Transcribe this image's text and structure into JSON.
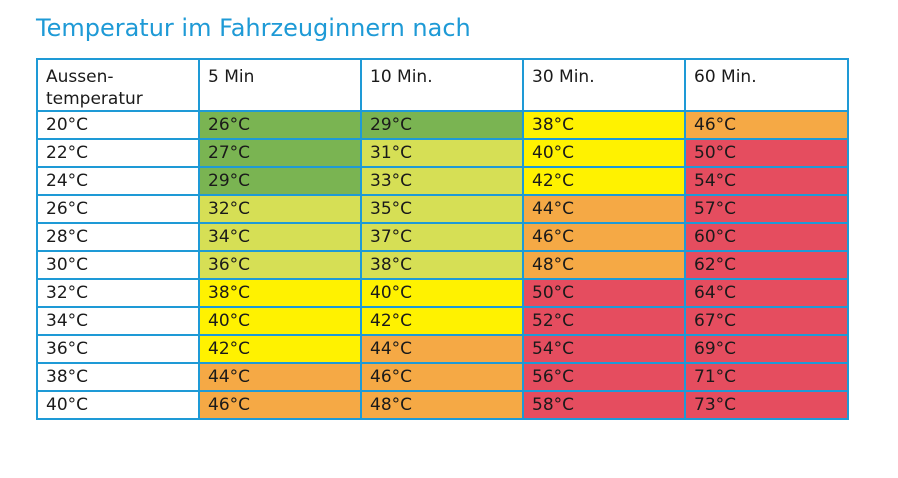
{
  "title": "Temperatur im Fahrzeuginnern nach",
  "colors": {
    "border": "#1e9ad6",
    "title": "#1e9ad6",
    "green": "#7ab452",
    "lime": "#d6df55",
    "yellow": "#fff200",
    "orange": "#f5a945",
    "red": "#e54d5f"
  },
  "columns": [
    "Aussen-\ntemperatur",
    "5 Min",
    "10 Min.",
    "30 Min.",
    "60 Min."
  ],
  "rows": [
    {
      "outside": "20°C",
      "cells": [
        {
          "v": "26°C",
          "c": "green"
        },
        {
          "v": "29°C",
          "c": "green"
        },
        {
          "v": "38°C",
          "c": "yellow"
        },
        {
          "v": "46°C",
          "c": "orange"
        }
      ]
    },
    {
      "outside": "22°C",
      "cells": [
        {
          "v": "27°C",
          "c": "green"
        },
        {
          "v": "31°C",
          "c": "lime"
        },
        {
          "v": "40°C",
          "c": "yellow"
        },
        {
          "v": "50°C",
          "c": "red"
        }
      ]
    },
    {
      "outside": "24°C",
      "cells": [
        {
          "v": "29°C",
          "c": "green"
        },
        {
          "v": "33°C",
          "c": "lime"
        },
        {
          "v": "42°C",
          "c": "yellow"
        },
        {
          "v": "54°C",
          "c": "red"
        }
      ]
    },
    {
      "outside": "26°C",
      "cells": [
        {
          "v": "32°C",
          "c": "lime"
        },
        {
          "v": "35°C",
          "c": "lime"
        },
        {
          "v": "44°C",
          "c": "orange"
        },
        {
          "v": "57°C",
          "c": "red"
        }
      ]
    },
    {
      "outside": "28°C",
      "cells": [
        {
          "v": "34°C",
          "c": "lime"
        },
        {
          "v": "37°C",
          "c": "lime"
        },
        {
          "v": "46°C",
          "c": "orange"
        },
        {
          "v": "60°C",
          "c": "red"
        }
      ]
    },
    {
      "outside": "30°C",
      "cells": [
        {
          "v": "36°C",
          "c": "lime"
        },
        {
          "v": "38°C",
          "c": "lime"
        },
        {
          "v": "48°C",
          "c": "orange"
        },
        {
          "v": "62°C",
          "c": "red"
        }
      ]
    },
    {
      "outside": "32°C",
      "cells": [
        {
          "v": "38°C",
          "c": "yellow"
        },
        {
          "v": "40°C",
          "c": "yellow"
        },
        {
          "v": "50°C",
          "c": "red"
        },
        {
          "v": "64°C",
          "c": "red"
        }
      ]
    },
    {
      "outside": "34°C",
      "cells": [
        {
          "v": "40°C",
          "c": "yellow"
        },
        {
          "v": "42°C",
          "c": "yellow"
        },
        {
          "v": "52°C",
          "c": "red"
        },
        {
          "v": "67°C",
          "c": "red"
        }
      ]
    },
    {
      "outside": "36°C",
      "cells": [
        {
          "v": "42°C",
          "c": "yellow"
        },
        {
          "v": "44°C",
          "c": "orange"
        },
        {
          "v": "54°C",
          "c": "red"
        },
        {
          "v": "69°C",
          "c": "red"
        }
      ]
    },
    {
      "outside": "38°C",
      "cells": [
        {
          "v": "44°C",
          "c": "orange"
        },
        {
          "v": "46°C",
          "c": "orange"
        },
        {
          "v": "56°C",
          "c": "red"
        },
        {
          "v": "71°C",
          "c": "red"
        }
      ]
    },
    {
      "outside": "40°C",
      "cells": [
        {
          "v": "46°C",
          "c": "orange"
        },
        {
          "v": "48°C",
          "c": "orange"
        },
        {
          "v": "58°C",
          "c": "red"
        },
        {
          "v": "73°C",
          "c": "red"
        }
      ]
    }
  ]
}
